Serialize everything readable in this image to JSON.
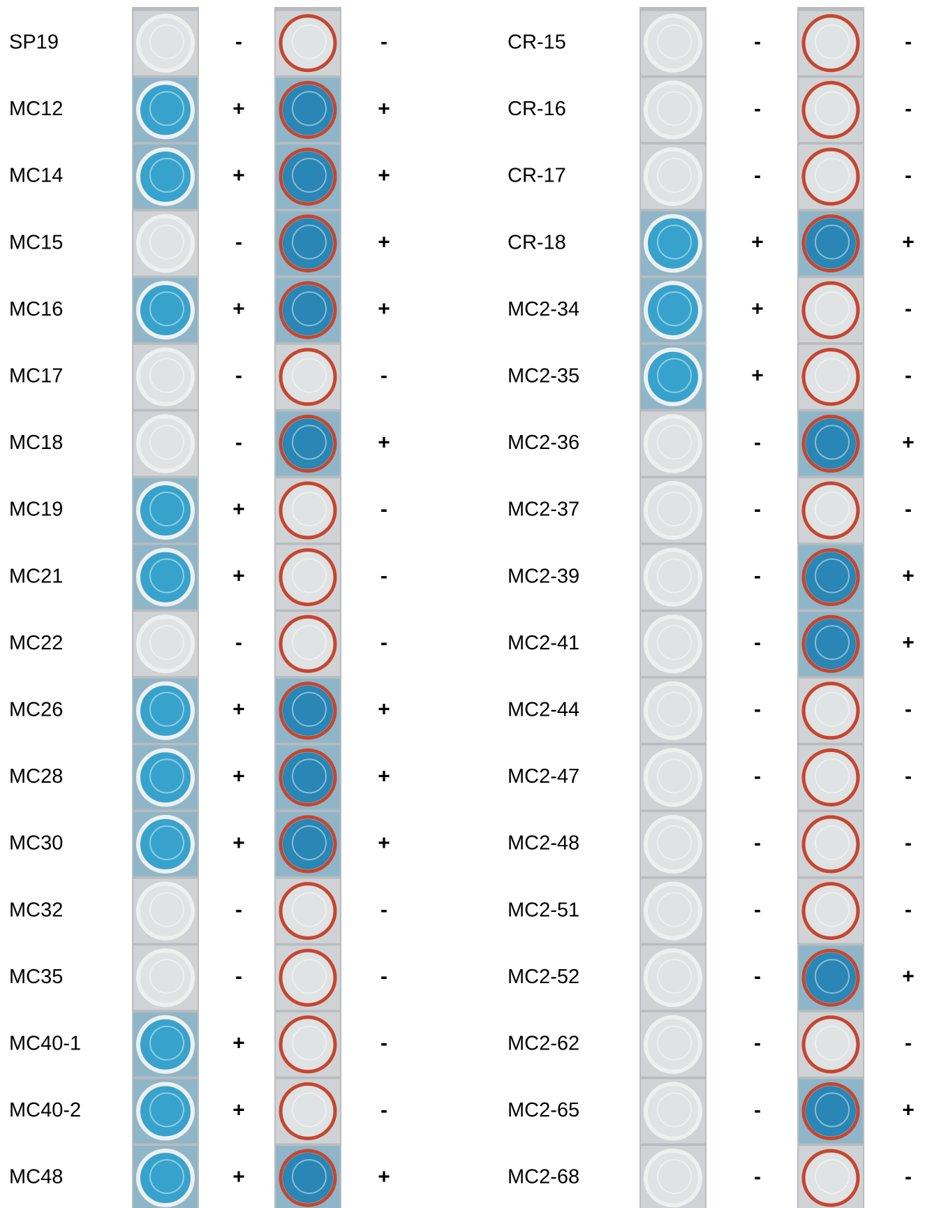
{
  "panels": [
    {
      "rows": [
        [
          "SP19",
          "-",
          "-"
        ],
        [
          "MC12",
          "+",
          "+"
        ],
        [
          "MC14",
          "+",
          "+"
        ],
        [
          "MC15",
          "-",
          "+"
        ],
        [
          "MC16",
          "+",
          "+"
        ],
        [
          "MC17",
          "-",
          "-"
        ],
        [
          "MC18",
          "-",
          "+"
        ],
        [
          "MC19",
          "+",
          "-"
        ],
        [
          "MC21",
          "+",
          "-"
        ],
        [
          "MC22",
          "-",
          "-"
        ],
        [
          "MC26",
          "+",
          "+"
        ],
        [
          "MC28",
          "+",
          "+"
        ],
        [
          "MC30",
          "+",
          "+"
        ],
        [
          "MC32",
          "-",
          "-"
        ],
        [
          "MC35",
          "-",
          "-"
        ],
        [
          "MC40-1",
          "+",
          "-"
        ],
        [
          "MC40-2",
          "+",
          "-"
        ],
        [
          "MC48",
          "+",
          "+"
        ]
      ]
    },
    {
      "rows": [
        [
          "CR-15",
          "-",
          "-"
        ],
        [
          "CR-16",
          "-",
          "-"
        ],
        [
          "CR-17",
          "-",
          "-"
        ],
        [
          "CR-18",
          "+",
          "+"
        ],
        [
          "MC2-34",
          "+",
          "-"
        ],
        [
          "MC2-35",
          "+",
          "-"
        ],
        [
          "MC2-36",
          "-",
          "+"
        ],
        [
          "MC2-37",
          "-",
          "-"
        ],
        [
          "MC2-39",
          "-",
          "+"
        ],
        [
          "MC2-41",
          "-",
          "+"
        ],
        [
          "MC2-44",
          "-",
          "-"
        ],
        [
          "MC2-47",
          "-",
          "-"
        ],
        [
          "MC2-48",
          "-",
          "-"
        ],
        [
          "MC2-51",
          "-",
          "-"
        ],
        [
          "MC2-52",
          "-",
          "+"
        ],
        [
          "MC2-62",
          "-",
          "-"
        ],
        [
          "MC2-65",
          "-",
          "+"
        ],
        [
          "MC2-68",
          "-",
          "-"
        ]
      ]
    }
  ]
}
